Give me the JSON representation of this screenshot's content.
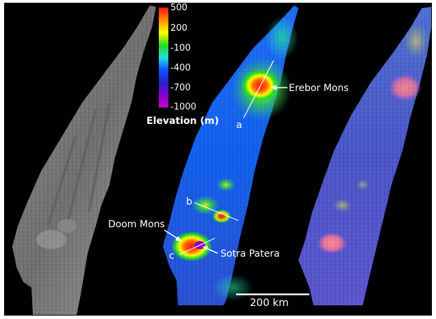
{
  "legend": {
    "title": "Elevation (m)",
    "ticks": [
      "500",
      "200",
      "-100",
      "-400",
      "-700",
      "-1000"
    ],
    "colors": [
      "#ff1010",
      "#ff8800",
      "#ffff00",
      "#22dd22",
      "#22dddd",
      "#1155ff",
      "#2222cc",
      "#8800cc",
      "#cc00cc"
    ]
  },
  "features": {
    "erebor": "Erebor Mons",
    "doom": "Doom Mons",
    "sotra": "Sotra Patera"
  },
  "profiles": {
    "a": "a",
    "b": "b",
    "c": "c"
  },
  "scale_bar": {
    "label": "200 km"
  }
}
